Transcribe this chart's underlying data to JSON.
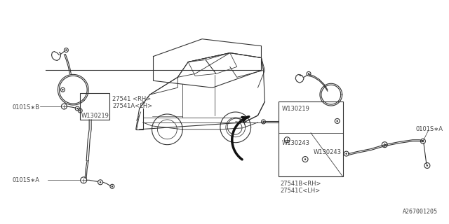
{
  "bg_color": "#ffffff",
  "fig_id": "A267001205",
  "labels": {
    "part1_line1": "27541 <RH>",
    "part1_line2": "27541A<LH>",
    "w130219_left": "W130219",
    "w130219_right": "W130219",
    "w130243_a": "W130243",
    "w130243_b": "W130243",
    "part2_line1": "27541B<RH>",
    "part2_line2": "27541C<LH>",
    "bolt_left_top": "0101S∗B",
    "bolt_left_bot": "0101S∗A",
    "bolt_right": "0101S∗A"
  },
  "lw": 0.8,
  "fs": 6.0
}
